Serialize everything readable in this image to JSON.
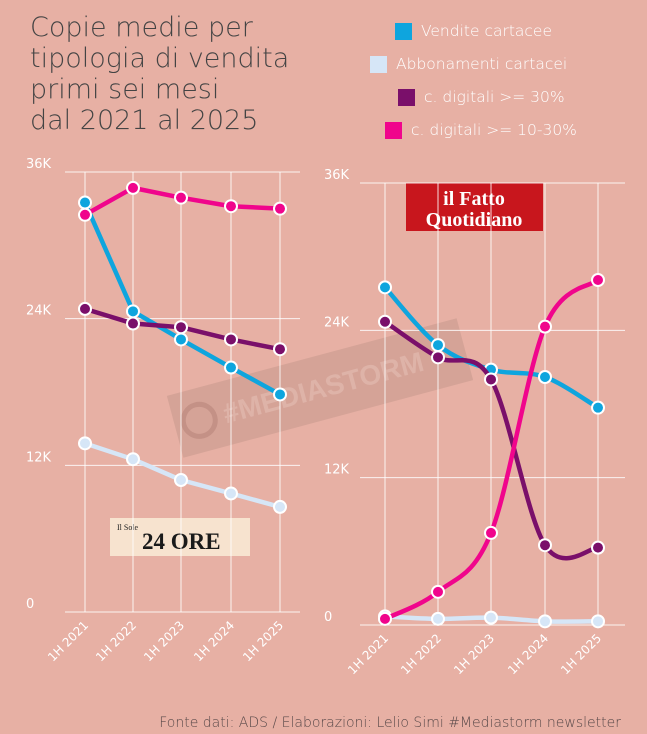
{
  "title_lines": [
    "Copie medie per",
    "tipologia di vendita",
    "primi sei mesi",
    "dal 2021 al 2025"
  ],
  "legend": [
    {
      "label": "Vendite cartacee",
      "color": "#0ea5de"
    },
    {
      "label": "Abbonamenti cartacei",
      "color": "#d6e6f7"
    },
    {
      "label": "c. digitali >= 30%",
      "color": "#7a0f6a"
    },
    {
      "label": "c. digitali >= 10-30%",
      "color": "#f0058c"
    }
  ],
  "source": "Fonte dati:  ADS / Elaborazioni: Lelio Simi #Mediastorm newsletter",
  "watermark": "#MEDIASTORM",
  "colors": {
    "background": "#e7b0a4",
    "grid": "#ffffff"
  },
  "chart_data": [
    {
      "type": "line",
      "newspaper": "Il Sole 24 ORE",
      "logo_text": {
        "small": "Il Sole",
        "big": "24 ORE"
      },
      "categories": [
        "1H 2021",
        "1H 2022",
        "1H 2023",
        "1H 2024",
        "1H 2025"
      ],
      "yticks": [
        "0",
        "12K",
        "24K",
        "36K"
      ],
      "ylim": [
        0,
        36000
      ],
      "grid": true,
      "smooth": false,
      "series": [
        {
          "name": "Vendite cartacee",
          "color": "#0ea5de",
          "values": [
            33500,
            24600,
            22300,
            20000,
            17800
          ]
        },
        {
          "name": "Abbonamenti cartacei",
          "color": "#d6e6f7",
          "values": [
            13800,
            12500,
            10800,
            9700,
            8600
          ]
        },
        {
          "name": "c. digitali >= 30%",
          "color": "#7a0f6a",
          "values": [
            24800,
            23600,
            23300,
            22300,
            21500
          ]
        },
        {
          "name": "c. digitali >= 10-30%",
          "color": "#f0058c",
          "values": [
            32500,
            34700,
            33900,
            33200,
            33000
          ]
        }
      ]
    },
    {
      "type": "line",
      "newspaper": "il Fatto Quotidiano",
      "logo_text": {
        "line1": "il Fatto",
        "line2": "Quotidiano"
      },
      "categories": [
        "1H 2021",
        "1H 2022",
        "1H 2023",
        "1H 2024",
        "1H 2025"
      ],
      "yticks": [
        "0",
        "12K",
        "24K",
        "36K"
      ],
      "ylim": [
        0,
        36000
      ],
      "grid": true,
      "smooth": true,
      "series": [
        {
          "name": "Vendite cartacee",
          "color": "#0ea5de",
          "values": [
            27500,
            22800,
            20800,
            20200,
            17700
          ]
        },
        {
          "name": "Abbonamenti cartacei",
          "color": "#d6e6f7",
          "values": [
            700,
            500,
            600,
            300,
            300
          ]
        },
        {
          "name": "c. digitali >= 30%",
          "color": "#7a0f6a",
          "values": [
            24700,
            21800,
            20000,
            6500,
            6300
          ]
        },
        {
          "name": "c. digitali >= 10-30%",
          "color": "#f0058c",
          "values": [
            500,
            2700,
            7500,
            24300,
            28100
          ]
        }
      ]
    }
  ]
}
